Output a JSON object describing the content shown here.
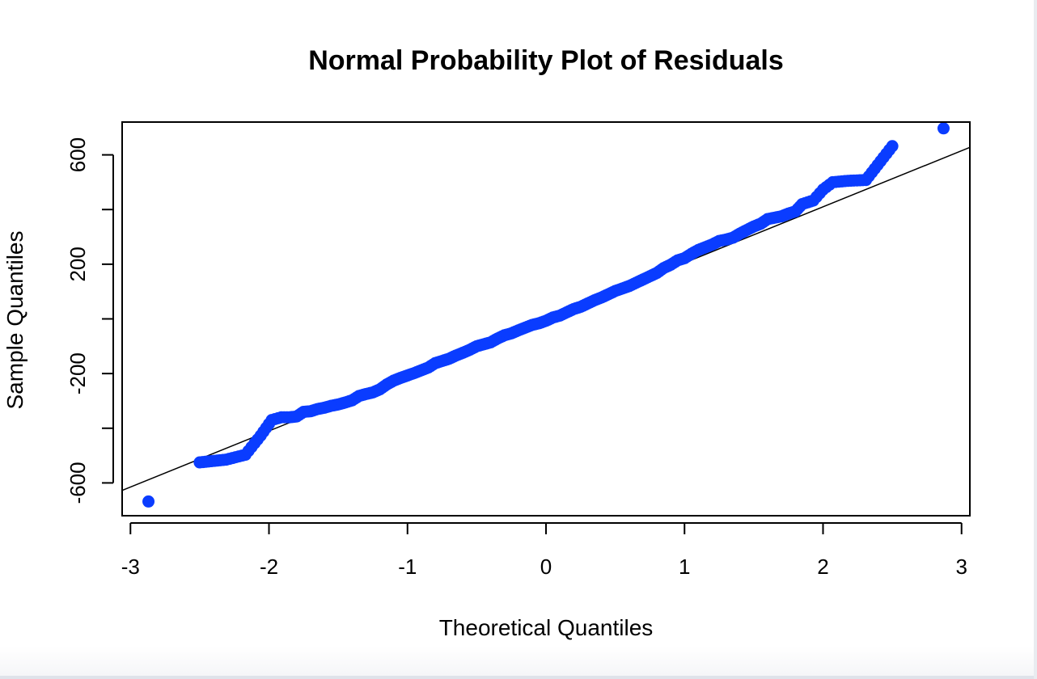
{
  "chart_data": {
    "type": "scatter",
    "title": "Normal Probability Plot of Residuals",
    "xlabel": "Theoretical Quantiles",
    "ylabel": "Sample Quantiles",
    "xlim": [
      -3.06,
      3.06
    ],
    "ylim": [
      -720,
      720
    ],
    "x_ticks": [
      -3,
      -2,
      -1,
      0,
      1,
      2,
      3
    ],
    "y_ticks": [
      -600,
      -400,
      -200,
      0,
      200,
      400,
      600
    ],
    "y_tick_labels": [
      "-600",
      "",
      "-200",
      "",
      "200",
      "",
      "600"
    ],
    "grid": false,
    "point_color": "#0a3cff",
    "line_color": "#000000",
    "reference_line": {
      "intercept": 0,
      "slope": 205
    },
    "series": [
      {
        "points": [
          [
            -2.87,
            -668
          ],
          [
            -2.5,
            -525
          ],
          [
            -2.31,
            -515
          ],
          [
            -2.17,
            -497
          ],
          [
            -2.06,
            -427
          ],
          [
            -1.98,
            -370
          ],
          [
            -1.91,
            -360
          ],
          [
            -1.85,
            -360
          ],
          [
            -1.8,
            -357
          ],
          [
            -1.75,
            -340
          ],
          [
            -1.7,
            -338
          ],
          [
            -1.65,
            -330
          ],
          [
            -1.6,
            -325
          ],
          [
            -1.55,
            -318
          ],
          [
            -1.5,
            -313
          ],
          [
            -1.45,
            -306
          ],
          [
            -1.4,
            -298
          ],
          [
            -1.35,
            -282
          ],
          [
            -1.3,
            -275
          ],
          [
            -1.25,
            -269
          ],
          [
            -1.2,
            -258
          ],
          [
            -1.15,
            -240
          ],
          [
            -1.1,
            -226
          ],
          [
            -1.05,
            -216
          ],
          [
            -1.0,
            -207
          ],
          [
            -0.95,
            -198
          ],
          [
            -0.9,
            -188
          ],
          [
            -0.85,
            -178
          ],
          [
            -0.8,
            -162
          ],
          [
            -0.75,
            -154
          ],
          [
            -0.7,
            -146
          ],
          [
            -0.65,
            -134
          ],
          [
            -0.6,
            -124
          ],
          [
            -0.55,
            -113
          ],
          [
            -0.5,
            -100
          ],
          [
            -0.45,
            -93
          ],
          [
            -0.4,
            -86
          ],
          [
            -0.35,
            -72
          ],
          [
            -0.3,
            -60
          ],
          [
            -0.25,
            -53
          ],
          [
            -0.2,
            -42
          ],
          [
            -0.15,
            -32
          ],
          [
            -0.1,
            -22
          ],
          [
            -0.05,
            -16
          ],
          [
            0.0,
            -7
          ],
          [
            0.05,
            5
          ],
          [
            0.1,
            12
          ],
          [
            0.15,
            24
          ],
          [
            0.2,
            36
          ],
          [
            0.25,
            44
          ],
          [
            0.3,
            56
          ],
          [
            0.35,
            68
          ],
          [
            0.4,
            78
          ],
          [
            0.45,
            90
          ],
          [
            0.5,
            102
          ],
          [
            0.55,
            111
          ],
          [
            0.6,
            120
          ],
          [
            0.65,
            132
          ],
          [
            0.7,
            144
          ],
          [
            0.75,
            156
          ],
          [
            0.8,
            168
          ],
          [
            0.85,
            186
          ],
          [
            0.9,
            198
          ],
          [
            0.95,
            214
          ],
          [
            1.0,
            222
          ],
          [
            1.05,
            238
          ],
          [
            1.1,
            252
          ],
          [
            1.15,
            262
          ],
          [
            1.2,
            272
          ],
          [
            1.25,
            285
          ],
          [
            1.3,
            290
          ],
          [
            1.35,
            297
          ],
          [
            1.4,
            312
          ],
          [
            1.45,
            325
          ],
          [
            1.5,
            338
          ],
          [
            1.55,
            348
          ],
          [
            1.6,
            365
          ],
          [
            1.65,
            370
          ],
          [
            1.7,
            375
          ],
          [
            1.75,
            385
          ],
          [
            1.8,
            393
          ],
          [
            1.85,
            420
          ],
          [
            1.93,
            433
          ],
          [
            2.0,
            473
          ],
          [
            2.07,
            500
          ],
          [
            2.18,
            505
          ],
          [
            2.31,
            508
          ],
          [
            2.5,
            632
          ],
          [
            2.87,
            697
          ]
        ]
      }
    ]
  }
}
